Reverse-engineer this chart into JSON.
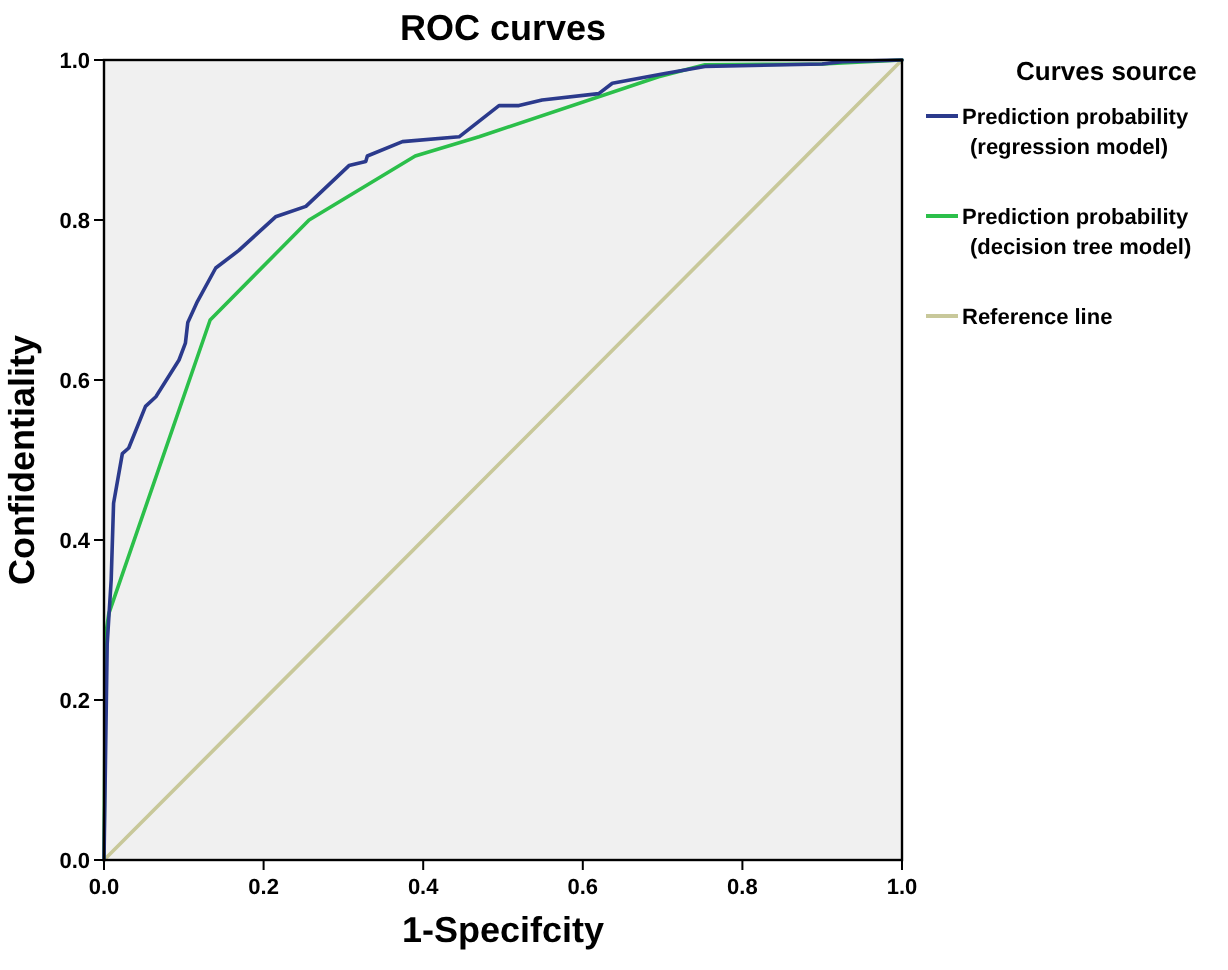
{
  "chart_data": {
    "type": "line",
    "title": "ROC curves",
    "xlabel": "1-Specifcity",
    "ylabel": "Confidentiality",
    "legend_title": "Curves source",
    "legend": "right",
    "grid": false,
    "marker": "none",
    "line_style": "solid",
    "xlim": [
      0,
      1
    ],
    "ylim": [
      0,
      1
    ],
    "xticks": [
      {
        "value": 0,
        "label": "0.0"
      },
      {
        "value": 0.2,
        "label": "0.2"
      },
      {
        "value": 0.4,
        "label": "0.4"
      },
      {
        "value": 0.6,
        "label": "0.6"
      },
      {
        "value": 0.8,
        "label": "0.8"
      },
      {
        "value": 1,
        "label": "1.0"
      }
    ],
    "yticks": [
      {
        "value": 0,
        "label": "0.0"
      },
      {
        "value": 0.2,
        "label": "0.2"
      },
      {
        "value": 0.4,
        "label": "0.4"
      },
      {
        "value": 0.6,
        "label": "0.6"
      },
      {
        "value": 0.8,
        "label": "0.8"
      },
      {
        "value": 1,
        "label": "1.0"
      }
    ],
    "series": [
      {
        "name": "Prediction probability\n(regression model)",
        "color": "#2b3a8c",
        "x": [
          0,
          0.004,
          0.009,
          0.012,
          0.023,
          0.031,
          0.052,
          0.065,
          0.094,
          0.102,
          0.105,
          0.117,
          0.14,
          0.169,
          0.215,
          0.253,
          0.307,
          0.328,
          0.33,
          0.374,
          0.445,
          0.495,
          0.52,
          0.549,
          0.62,
          0.637,
          0.703,
          0.753,
          0.9,
          0.925,
          1
        ],
        "values": [
          0,
          0.27,
          0.35,
          0.446,
          0.508,
          0.515,
          0.567,
          0.579,
          0.625,
          0.646,
          0.672,
          0.698,
          0.74,
          0.762,
          0.804,
          0.817,
          0.868,
          0.873,
          0.88,
          0.898,
          0.904,
          0.943,
          0.943,
          0.95,
          0.958,
          0.971,
          0.983,
          0.992,
          0.995,
          0.998,
          1
        ]
      },
      {
        "name": "Prediction probability\n(decision tree model)",
        "color": "#2bbf4a",
        "x": [
          0,
          0.002,
          0.006,
          0.133,
          0.257,
          0.39,
          0.47,
          0.695,
          0.753,
          0.9,
          1
        ],
        "values": [
          0,
          0.28,
          0.308,
          0.675,
          0.8,
          0.88,
          0.904,
          0.979,
          0.994,
          0.995,
          1
        ]
      },
      {
        "name": "Reference line",
        "color": "#c8c89a",
        "x": [
          0,
          1
        ],
        "values": [
          0,
          1
        ]
      }
    ]
  }
}
